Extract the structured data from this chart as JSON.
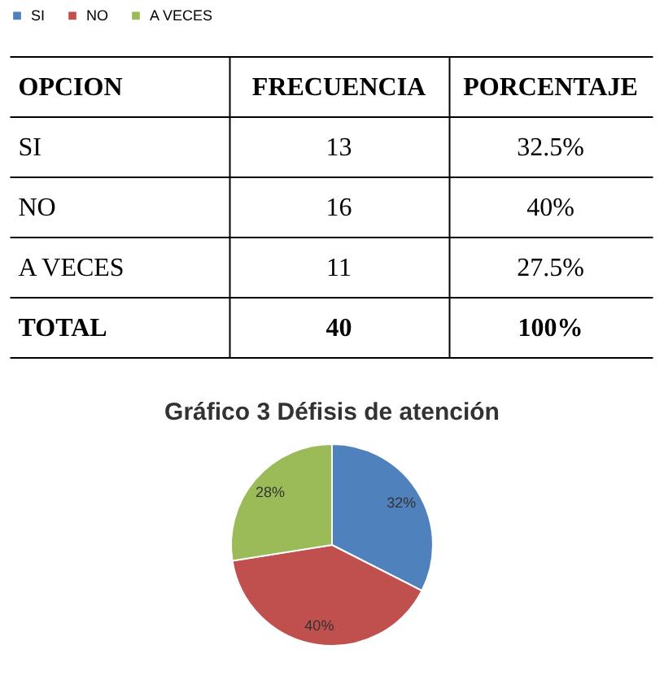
{
  "chart_data": [
    {
      "type": "other",
      "annotations": [
        "OPCION",
        "FRECUENCIA",
        "PORCENTAJE",
        "SI",
        "13",
        "32.5%",
        "NO",
        "16",
        "40%",
        "A VECES",
        "11",
        "27.5%",
        "TOTAL",
        "40",
        "100%"
      ]
    },
    {
      "type": "pie",
      "title": "Gráfico 3 Défisis de atención",
      "categories": [
        "SI",
        "NO",
        "A VECES"
      ],
      "values": [
        32.5,
        40,
        27.5
      ],
      "colors": [
        "#4f81bd",
        "#c0504d",
        "#9bbb59"
      ],
      "value_labels": [
        "32%",
        "40%",
        "28%"
      ],
      "legend": "top"
    }
  ]
}
